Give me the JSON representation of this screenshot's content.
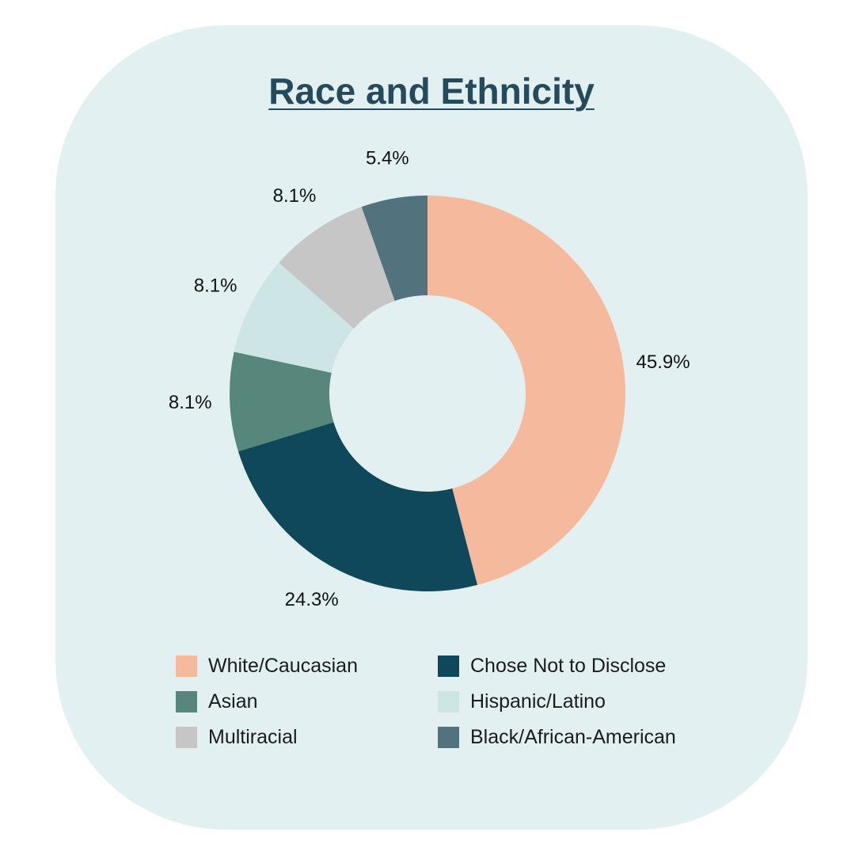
{
  "chart_data": {
    "type": "pie",
    "variant": "donut",
    "title": "Race and Ethnicity",
    "series": [
      {
        "name": "White/Caucasian",
        "value": 45.9,
        "label": "45.9%",
        "color": "#f5b99e"
      },
      {
        "name": "Chose Not to Disclose",
        "value": 24.3,
        "label": "24.3%",
        "color": "#0f475b"
      },
      {
        "name": "Asian",
        "value": 8.1,
        "label": "8.1%",
        "color": "#57877b"
      },
      {
        "name": "Hispanic/Latino",
        "value": 8.1,
        "label": "8.1%",
        "color": "#cde6e5"
      },
      {
        "name": "Multiracial",
        "value": 8.1,
        "label": "8.1%",
        "color": "#c6c6c6"
      },
      {
        "name": "Black/African-American",
        "value": 5.4,
        "label": "5.4%",
        "color": "#52727d"
      }
    ],
    "legend_position": "bottom"
  },
  "legend": {
    "items": [
      {
        "label": "White/Caucasian",
        "color": "#f5b99e"
      },
      {
        "label": "Chose Not to Disclose",
        "color": "#0f475b"
      },
      {
        "label": "Asian",
        "color": "#57877b"
      },
      {
        "label": "Hispanic/Latino",
        "color": "#cde6e5"
      },
      {
        "label": "Multiracial",
        "color": "#c6c6c6"
      },
      {
        "label": "Black/African-American",
        "color": "#52727d"
      }
    ]
  },
  "colors": {
    "card_background": "#e3f0f2",
    "title": "#254a5c"
  }
}
